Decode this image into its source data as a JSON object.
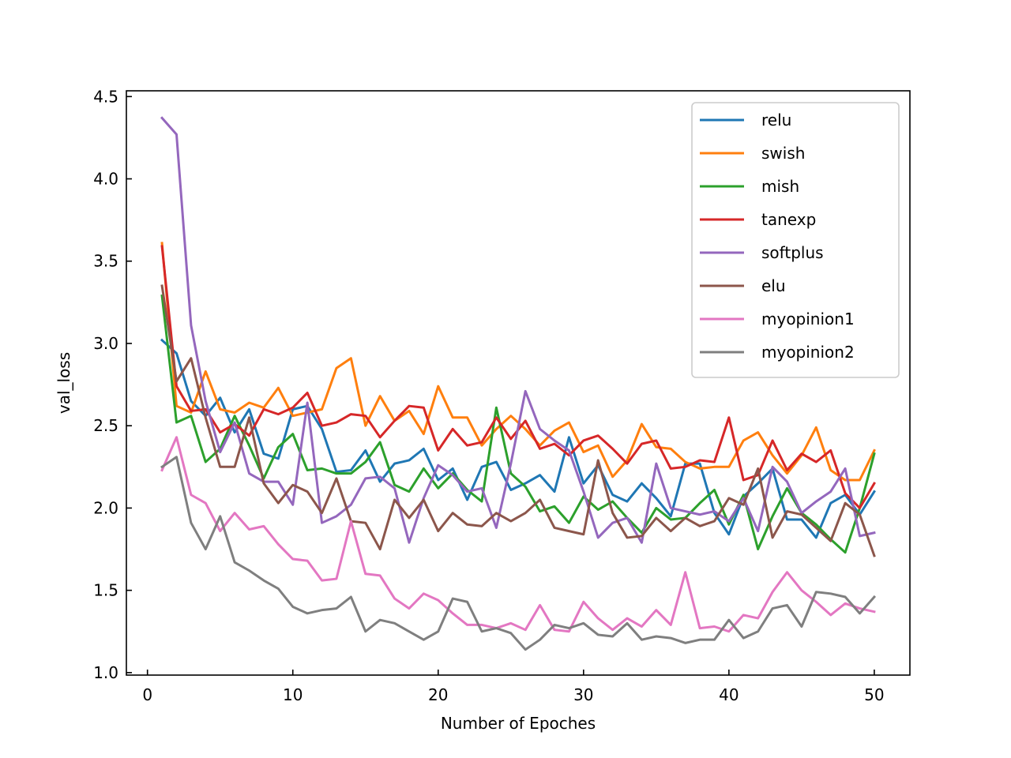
{
  "chart_data": {
    "type": "line",
    "title": "",
    "xlabel": "Number of Epoches",
    "ylabel": "val_loss",
    "xlim": [
      -1.45,
      52.45
    ],
    "ylim": [
      0.985,
      4.535
    ],
    "xticks": [
      0,
      10,
      20,
      30,
      40,
      50
    ],
    "xtick_labels": [
      "0",
      "10",
      "20",
      "30",
      "40",
      "50"
    ],
    "yticks": [
      1.0,
      1.5,
      2.0,
      2.5,
      3.0,
      3.5,
      4.0,
      4.5
    ],
    "ytick_labels": [
      "1.0",
      "1.5",
      "2.0",
      "2.5",
      "3.0",
      "3.5",
      "4.0",
      "4.5"
    ],
    "grid": false,
    "legend_position": "top-right",
    "x": [
      1,
      2,
      3,
      4,
      5,
      6,
      7,
      8,
      9,
      10,
      11,
      12,
      13,
      14,
      15,
      16,
      17,
      18,
      19,
      20,
      21,
      22,
      23,
      24,
      25,
      26,
      27,
      28,
      29,
      30,
      31,
      32,
      33,
      34,
      35,
      36,
      37,
      38,
      39,
      40,
      41,
      42,
      43,
      44,
      45,
      46,
      47,
      48,
      49,
      50
    ],
    "series": [
      {
        "name": "relu",
        "color": "#1f77b4",
        "values": [
          3.02,
          2.94,
          2.65,
          2.56,
          2.67,
          2.46,
          2.6,
          2.33,
          2.3,
          2.6,
          2.62,
          2.48,
          2.22,
          2.23,
          2.35,
          2.16,
          2.27,
          2.29,
          2.36,
          2.17,
          2.24,
          2.05,
          2.25,
          2.28,
          2.11,
          2.15,
          2.2,
          2.1,
          2.43,
          2.15,
          2.26,
          2.08,
          2.04,
          2.15,
          2.06,
          1.95,
          2.27,
          2.27,
          1.97,
          1.84,
          2.07,
          2.15,
          2.24,
          1.93,
          1.93,
          1.82,
          2.03,
          2.08,
          1.96,
          2.1
        ]
      },
      {
        "name": "swish",
        "color": "#ff7f0e",
        "values": [
          3.61,
          2.62,
          2.58,
          2.83,
          2.6,
          2.58,
          2.64,
          2.61,
          2.73,
          2.56,
          2.58,
          2.6,
          2.85,
          2.91,
          2.5,
          2.68,
          2.53,
          2.59,
          2.45,
          2.74,
          2.55,
          2.55,
          2.38,
          2.48,
          2.56,
          2.48,
          2.38,
          2.47,
          2.52,
          2.34,
          2.38,
          2.19,
          2.29,
          2.51,
          2.37,
          2.36,
          2.28,
          2.24,
          2.25,
          2.25,
          2.41,
          2.46,
          2.32,
          2.21,
          2.32,
          2.49,
          2.23,
          2.17,
          2.17,
          2.35
        ]
      },
      {
        "name": "mish",
        "color": "#2ca02c",
        "values": [
          3.29,
          2.52,
          2.56,
          2.28,
          2.36,
          2.56,
          2.38,
          2.18,
          2.37,
          2.45,
          2.23,
          2.24,
          2.21,
          2.21,
          2.28,
          2.4,
          2.14,
          2.1,
          2.24,
          2.12,
          2.21,
          2.11,
          2.04,
          2.61,
          2.21,
          2.13,
          1.98,
          2.01,
          1.91,
          2.07,
          1.99,
          2.04,
          1.94,
          1.85,
          2.0,
          1.93,
          1.94,
          2.03,
          2.11,
          1.9,
          2.08,
          1.75,
          1.95,
          2.12,
          1.97,
          1.9,
          1.81,
          1.73,
          2.0,
          2.33
        ]
      },
      {
        "name": "tanexp",
        "color": "#d62728",
        "values": [
          3.59,
          2.74,
          2.59,
          2.6,
          2.46,
          2.51,
          2.44,
          2.6,
          2.57,
          2.61,
          2.7,
          2.5,
          2.52,
          2.57,
          2.56,
          2.43,
          2.53,
          2.62,
          2.61,
          2.35,
          2.48,
          2.38,
          2.4,
          2.55,
          2.42,
          2.53,
          2.36,
          2.39,
          2.32,
          2.41,
          2.44,
          2.36,
          2.27,
          2.39,
          2.41,
          2.24,
          2.25,
          2.29,
          2.28,
          2.55,
          2.17,
          2.2,
          2.41,
          2.23,
          2.33,
          2.28,
          2.35,
          2.09,
          2.0,
          2.15
        ]
      },
      {
        "name": "softplus",
        "color": "#9467bd",
        "values": [
          4.37,
          4.27,
          3.11,
          2.65,
          2.34,
          2.52,
          2.21,
          2.16,
          2.16,
          2.02,
          2.64,
          1.91,
          1.95,
          2.02,
          2.18,
          2.19,
          2.12,
          1.79,
          2.06,
          2.26,
          2.2,
          2.1,
          2.12,
          1.88,
          2.27,
          2.71,
          2.48,
          2.41,
          2.35,
          2.1,
          1.82,
          1.91,
          1.94,
          1.79,
          2.27,
          2.0,
          1.98,
          1.96,
          1.98,
          1.92,
          2.06,
          1.86,
          2.25,
          2.16,
          1.97,
          2.04,
          2.1,
          2.24,
          1.83,
          1.85
        ]
      },
      {
        "name": "elu",
        "color": "#8c564b",
        "values": [
          3.35,
          2.77,
          2.91,
          2.55,
          2.25,
          2.25,
          2.55,
          2.15,
          2.03,
          2.14,
          2.1,
          1.97,
          2.18,
          1.92,
          1.91,
          1.75,
          2.05,
          1.94,
          2.05,
          1.86,
          1.97,
          1.9,
          1.89,
          1.97,
          1.92,
          1.97,
          2.05,
          1.88,
          1.86,
          1.84,
          2.29,
          1.97,
          1.82,
          1.83,
          1.94,
          1.86,
          1.94,
          1.89,
          1.92,
          2.06,
          2.02,
          2.24,
          1.82,
          1.98,
          1.96,
          1.88,
          1.8,
          2.03,
          1.96,
          1.71
        ]
      },
      {
        "name": "myopinion1",
        "color": "#e377c2",
        "values": [
          2.23,
          2.43,
          2.08,
          2.03,
          1.86,
          1.97,
          1.87,
          1.89,
          1.78,
          1.69,
          1.68,
          1.56,
          1.57,
          1.92,
          1.6,
          1.59,
          1.45,
          1.39,
          1.48,
          1.44,
          1.36,
          1.29,
          1.29,
          1.27,
          1.3,
          1.26,
          1.41,
          1.26,
          1.25,
          1.43,
          1.33,
          1.26,
          1.33,
          1.28,
          1.38,
          1.29,
          1.61,
          1.27,
          1.28,
          1.25,
          1.35,
          1.33,
          1.49,
          1.61,
          1.5,
          1.43,
          1.35,
          1.42,
          1.39,
          1.37
        ]
      },
      {
        "name": "myopinion2",
        "color": "#7f7f7f",
        "values": [
          2.25,
          2.31,
          1.91,
          1.75,
          1.95,
          1.67,
          1.62,
          1.56,
          1.51,
          1.4,
          1.36,
          1.38,
          1.39,
          1.46,
          1.25,
          1.32,
          1.3,
          1.25,
          1.2,
          1.25,
          1.45,
          1.43,
          1.25,
          1.27,
          1.24,
          1.14,
          1.2,
          1.29,
          1.27,
          1.3,
          1.23,
          1.22,
          1.3,
          1.2,
          1.22,
          1.21,
          1.18,
          1.2,
          1.2,
          1.32,
          1.21,
          1.25,
          1.39,
          1.41,
          1.28,
          1.49,
          1.48,
          1.46,
          1.36,
          1.46
        ]
      }
    ]
  }
}
